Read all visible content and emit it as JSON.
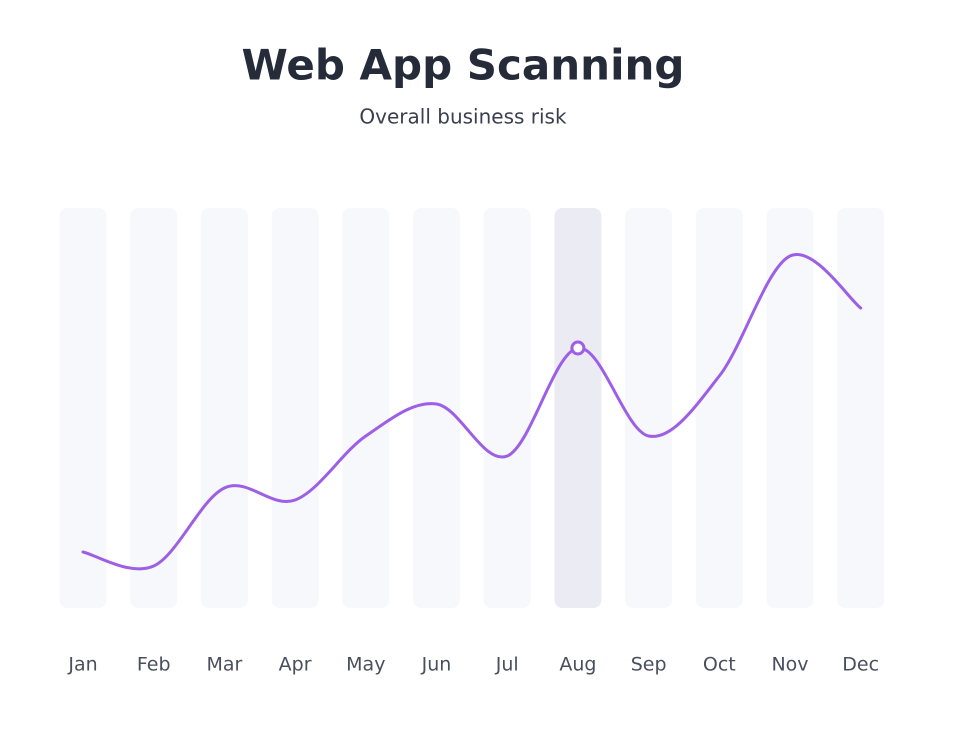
{
  "chart_data": {
    "type": "line",
    "title": "Web App Scanning",
    "subtitle": "Overall business risk",
    "categories": [
      "Jan",
      "Feb",
      "Mar",
      "Apr",
      "May",
      "Jun",
      "Jul",
      "Aug",
      "Sep",
      "Oct",
      "Nov",
      "Dec"
    ],
    "values": [
      14,
      10.5,
      30,
      27,
      43,
      51,
      38,
      65,
      43,
      58,
      88,
      75
    ],
    "color": "#9d5fe6",
    "ylim": [
      0,
      100
    ],
    "highlighted_category": "Aug"
  }
}
